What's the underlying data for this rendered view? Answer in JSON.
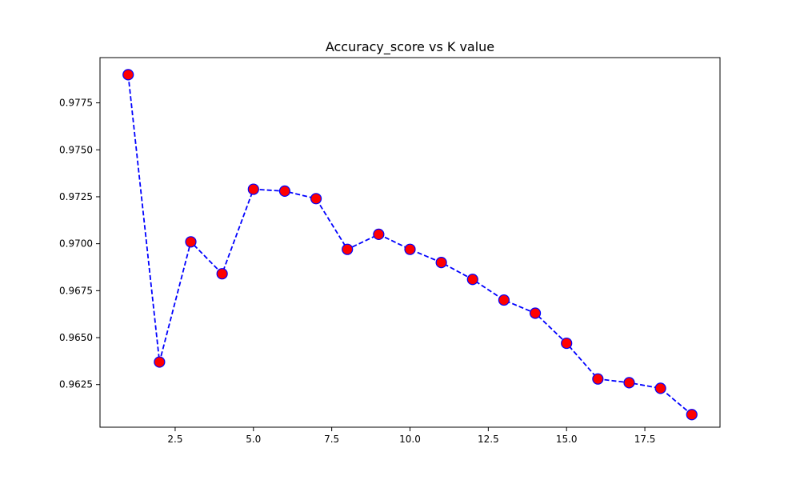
{
  "chart_data": {
    "type": "line",
    "title": "Accuracy_score vs K value",
    "xlabel": "",
    "ylabel": "",
    "xlim": [
      0.1,
      19.9
    ],
    "ylim": [
      0.96023,
      0.97991
    ],
    "x_ticks": [
      {
        "value": 2.5,
        "label": "2.5"
      },
      {
        "value": 5.0,
        "label": "5.0"
      },
      {
        "value": 7.5,
        "label": "7.5"
      },
      {
        "value": 10.0,
        "label": "10.0"
      },
      {
        "value": 12.5,
        "label": "12.5"
      },
      {
        "value": 15.0,
        "label": "15.0"
      },
      {
        "value": 17.5,
        "label": "17.5"
      }
    ],
    "y_ticks": [
      {
        "value": 0.9625,
        "label": "0.9625"
      },
      {
        "value": 0.965,
        "label": "0.9650"
      },
      {
        "value": 0.9675,
        "label": "0.9675"
      },
      {
        "value": 0.97,
        "label": "0.9700"
      },
      {
        "value": 0.9725,
        "label": "0.9725"
      },
      {
        "value": 0.975,
        "label": "0.9750"
      },
      {
        "value": 0.9775,
        "label": "0.9775"
      }
    ],
    "grid": false,
    "legend": "none",
    "series": [
      {
        "line_color": "#0000ff",
        "line_style": "dashed",
        "marker": "circle",
        "marker_face_color": "#ff0000",
        "marker_edge_color": "#0000ff",
        "points": [
          {
            "x": 1,
            "y": 0.979
          },
          {
            "x": 2,
            "y": 0.9637
          },
          {
            "x": 3,
            "y": 0.9701
          },
          {
            "x": 4,
            "y": 0.9684
          },
          {
            "x": 5,
            "y": 0.9729
          },
          {
            "x": 6,
            "y": 0.9728
          },
          {
            "x": 7,
            "y": 0.9724
          },
          {
            "x": 8,
            "y": 0.9697
          },
          {
            "x": 9,
            "y": 0.9705
          },
          {
            "x": 10,
            "y": 0.9697
          },
          {
            "x": 11,
            "y": 0.969
          },
          {
            "x": 12,
            "y": 0.9681
          },
          {
            "x": 13,
            "y": 0.967
          },
          {
            "x": 14,
            "y": 0.9663
          },
          {
            "x": 15,
            "y": 0.9647
          },
          {
            "x": 16,
            "y": 0.9628
          },
          {
            "x": 17,
            "y": 0.9626
          },
          {
            "x": 18,
            "y": 0.9623
          },
          {
            "x": 19,
            "y": 0.9609
          }
        ]
      }
    ]
  }
}
